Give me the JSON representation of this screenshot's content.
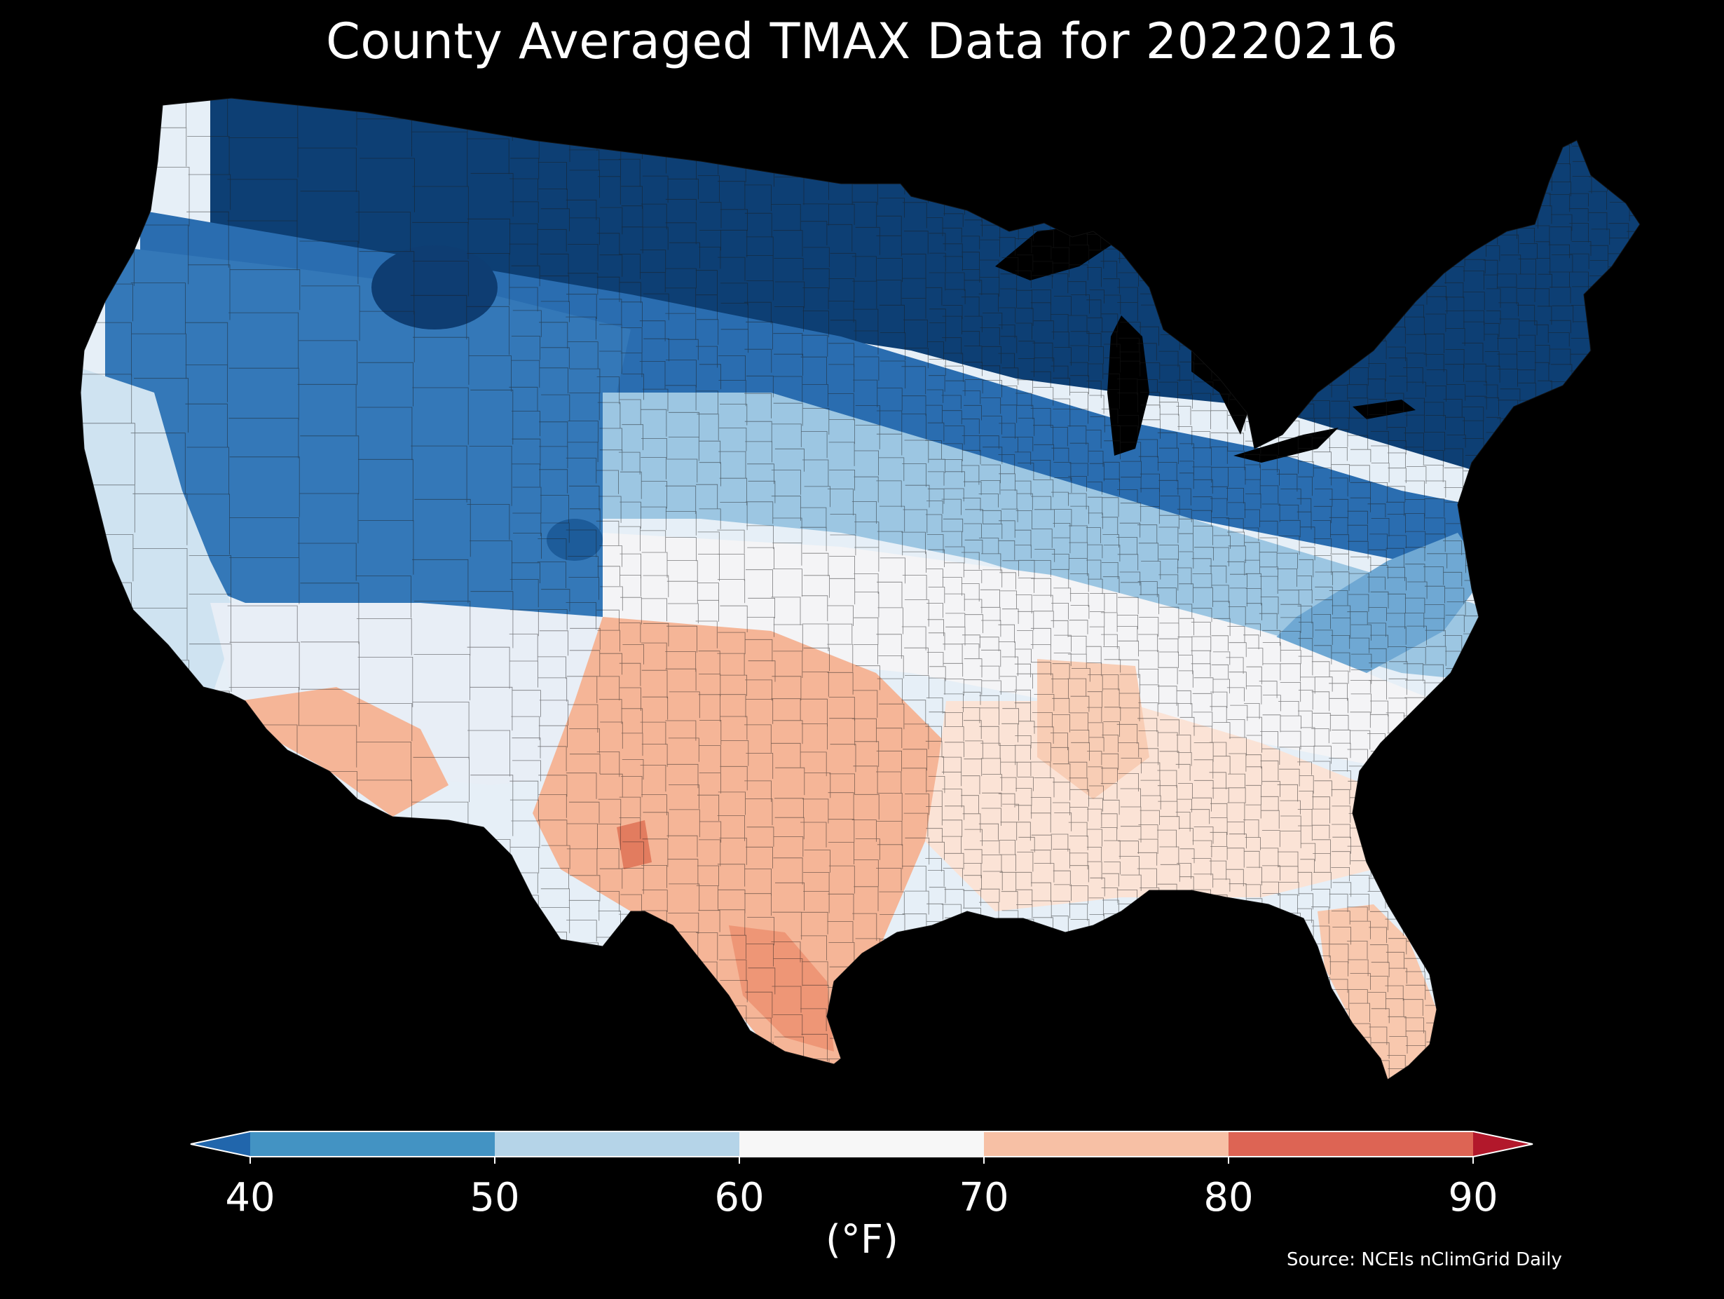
{
  "title": "County Averaged TMAX Data for 20220216",
  "source": "Source: NCEIs nClimGrid Daily",
  "colorbar": {
    "unit_label": "(°F)",
    "ticks": [
      "40",
      "50",
      "60",
      "70",
      "80",
      "90"
    ],
    "bins": [
      {
        "range": [
          40,
          50
        ],
        "color": "#4393c3"
      },
      {
        "range": [
          50,
          60
        ],
        "color": "#b5d4e8"
      },
      {
        "range": [
          60,
          70
        ],
        "color": "#f7f7f7"
      },
      {
        "range": [
          70,
          80
        ],
        "color": "#f7c0a5"
      },
      {
        "range": [
          80,
          90
        ],
        "color": "#dd6454"
      }
    ],
    "under_color": "#2166ac",
    "over_color": "#b2182b",
    "extend": "both"
  },
  "map": {
    "region": "contiguous United States",
    "unit": "county",
    "variable": "TMAX",
    "date": "20220216",
    "background": "#000000",
    "county_border_color": "#1b1b1b",
    "region_colors": {
      "north_central_and_northeast": "#0d3f74",
      "northern_plains_west": "#1f5f9c",
      "mountain_west": "#3173b5",
      "central_plains": "#5aa2d1",
      "california_coast": "#cfe3f1",
      "mid_latitude_band": "#e6eff7",
      "southwest_and_texas": "#f5b597",
      "south_texas_max": "#ee9676",
      "southeast": "#fbe3d6",
      "florida": "#f8c8ae"
    }
  }
}
